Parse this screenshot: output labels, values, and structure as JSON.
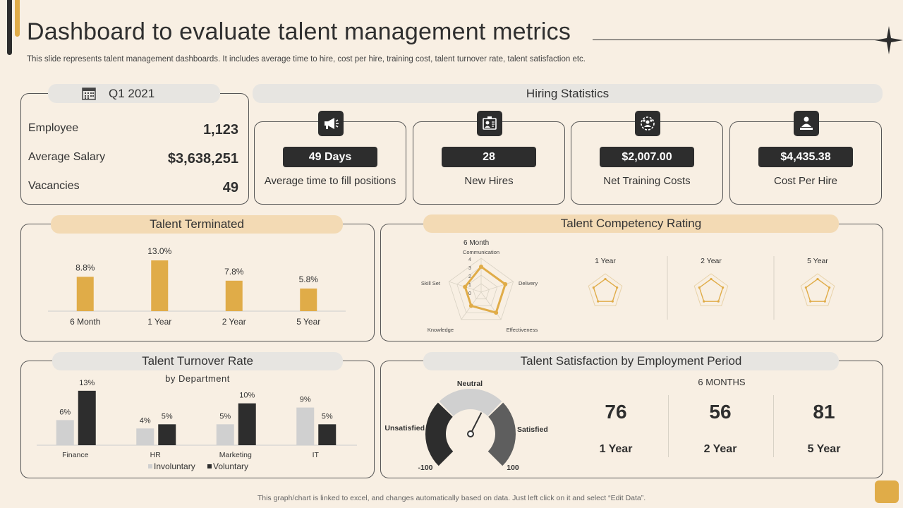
{
  "header": {
    "title": "Dashboard to evaluate talent management metrics",
    "subtitle": "This slide represents talent management dashboards. It includes average time to hire, cost per hire, training cost, talent turnover rate, talent satisfaction etc."
  },
  "summary": {
    "period": "Q1 2021",
    "rows": [
      {
        "label": "Employee",
        "value": "1,123"
      },
      {
        "label": "Average Salary",
        "value": "$3,638,251"
      },
      {
        "label": "Vacancies",
        "value": "49"
      }
    ]
  },
  "hiring": {
    "title": "Hiring Statistics",
    "cards": [
      {
        "value": "49 Days",
        "label": "Average time to fill positions",
        "icon": "megaphone-icon"
      },
      {
        "value": "28",
        "label": "New Hires",
        "icon": "id-card-icon"
      },
      {
        "value": "$2,007.00",
        "label": "Net Training Costs",
        "icon": "team-gear-icon"
      },
      {
        "value": "$4,435.38",
        "label": "Cost Per Hire",
        "icon": "employee-desk-icon"
      }
    ]
  },
  "terminated": {
    "title": "Talent Terminated",
    "chart_data": {
      "type": "bar",
      "categories": [
        "6 Month",
        "1 Year",
        "2 Year",
        "5 Year"
      ],
      "values": [
        8.8,
        13.0,
        7.8,
        5.8
      ],
      "labels": [
        "8.8%",
        "13.0%",
        "7.8%",
        "5.8%"
      ],
      "ylim": [
        0,
        15
      ],
      "color": "#e0ac48"
    }
  },
  "competency": {
    "title": "Talent Competency Rating",
    "main_label": "6  Month",
    "axes": [
      "Communication",
      "Delivery",
      "Effectiveness",
      "Knowledge",
      "Skill Set"
    ],
    "ticks": [
      "4",
      "3",
      "2",
      "1",
      "0"
    ],
    "values": [
      3,
      3,
      3,
      2,
      2
    ],
    "small_labels": [
      "1 Year",
      "2 Year",
      "5 Year"
    ],
    "color": "#e0ac48"
  },
  "turnover": {
    "title": "Talent Turnover Rate",
    "subtitle": "by Department",
    "chart_data": {
      "type": "bar",
      "categories": [
        "Finance",
        "HR",
        "Marketing",
        "IT"
      ],
      "series": [
        {
          "name": "Involuntary",
          "values": [
            6,
            4,
            5,
            9
          ],
          "labels": [
            "6%",
            "4%",
            "5%",
            "9%"
          ],
          "color": "#d0d0d0"
        },
        {
          "name": "Voluntary",
          "values": [
            13,
            5,
            10,
            5
          ],
          "labels": [
            "13%",
            "5%",
            "10%",
            "5%"
          ],
          "color": "#2d2d2d"
        }
      ],
      "ylim": [
        0,
        15
      ]
    }
  },
  "satisfaction": {
    "title": "Talent Satisfaction by Employment Period",
    "gauge": {
      "neutral": "Neutral",
      "unsatisfied": "Unsatisfied",
      "satisfied": "Satisfied",
      "min": "-100",
      "max": "100",
      "value": 20
    },
    "period_label": "6 MONTHS",
    "scores": [
      {
        "value": "76",
        "label": "1 Year"
      },
      {
        "value": "56",
        "label": "2 Year"
      },
      {
        "value": "81",
        "label": "5 Year"
      }
    ]
  },
  "footer": "This graph/chart is linked to excel, and changes automatically based on data. Just left click on it and select “Edit Data”."
}
